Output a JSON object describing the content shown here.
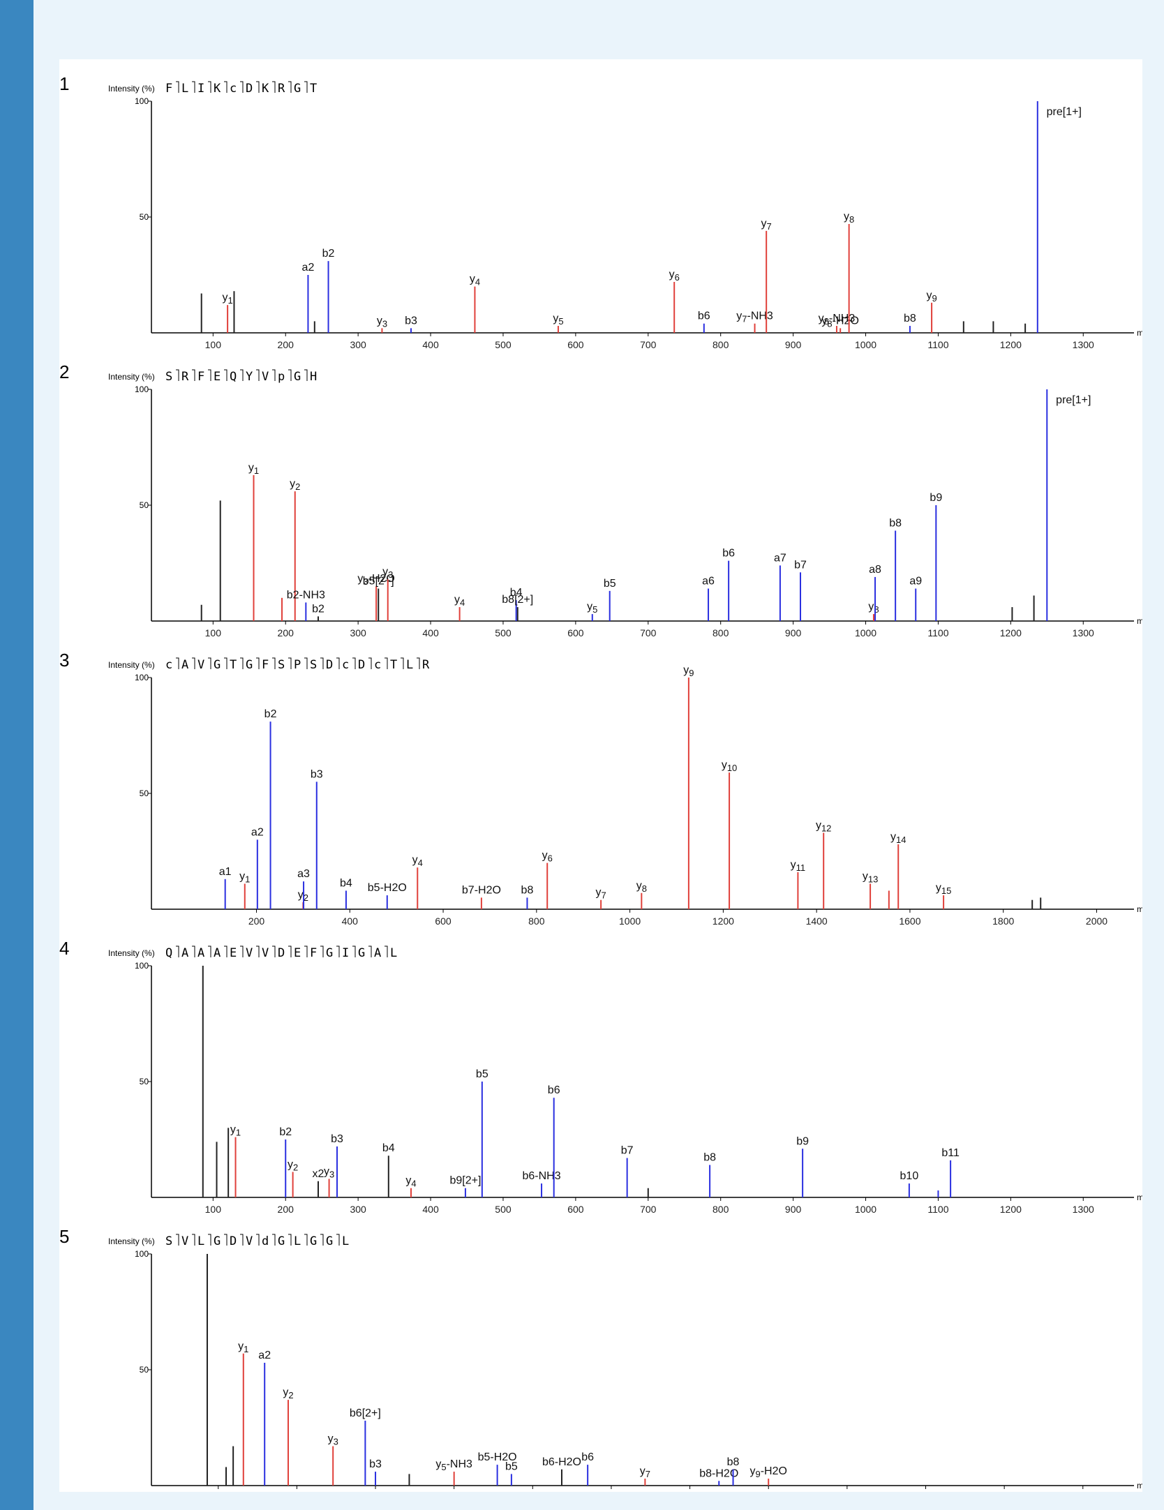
{
  "colors": {
    "sidebar": "#3a87c0",
    "background": "#eaf4fb",
    "panel": "#ffffff",
    "b_ion": "#2a2fe0",
    "y_ion": "#e0403a",
    "other": "#222222"
  },
  "chart_data": [
    {
      "type": "bar",
      "panel_number": "1",
      "ylabel": "Intensity (%)",
      "sequence": [
        "F",
        "L",
        "I",
        "K",
        "c",
        "D",
        "K",
        "R",
        "G",
        "T"
      ],
      "xlim": [
        15,
        1370
      ],
      "ylim": [
        0,
        100
      ],
      "xticks": [
        100,
        200,
        300,
        400,
        500,
        600,
        700,
        800,
        900,
        1000,
        1100,
        1200,
        1300
      ],
      "yticks": [
        50,
        100
      ],
      "peaks": [
        {
          "x": 84,
          "y": 17,
          "c": "k"
        },
        {
          "x": 120,
          "y": 12,
          "c": "r",
          "label": "y1"
        },
        {
          "x": 129,
          "y": 18,
          "c": "k"
        },
        {
          "x": 231,
          "y": 25,
          "c": "b",
          "label": "a2"
        },
        {
          "x": 259,
          "y": 31,
          "c": "b",
          "label": "b2"
        },
        {
          "x": 240,
          "y": 5,
          "c": "k"
        },
        {
          "x": 333,
          "y": 2,
          "c": "r",
          "label": "y3"
        },
        {
          "x": 373,
          "y": 2,
          "c": "b",
          "label": "b3"
        },
        {
          "x": 461,
          "y": 20,
          "c": "r",
          "label": "y4"
        },
        {
          "x": 576,
          "y": 3,
          "c": "r",
          "label": "y5"
        },
        {
          "x": 736,
          "y": 22,
          "c": "r",
          "label": "y6"
        },
        {
          "x": 777,
          "y": 4,
          "c": "b",
          "label": "b6"
        },
        {
          "x": 847,
          "y": 4,
          "c": "r",
          "label": "y7-NH3"
        },
        {
          "x": 863,
          "y": 44,
          "c": "r",
          "label": "y7"
        },
        {
          "x": 960,
          "y": 3,
          "c": "r",
          "label": "y8-NH3"
        },
        {
          "x": 965,
          "y": 2,
          "c": "r",
          "label": "y8-H2O"
        },
        {
          "x": 977,
          "y": 47,
          "c": "r",
          "label": "y8"
        },
        {
          "x": 1061,
          "y": 3,
          "c": "b",
          "label": "b8"
        },
        {
          "x": 1091,
          "y": 13,
          "c": "r",
          "label": "y9"
        },
        {
          "x": 1135,
          "y": 5,
          "c": "k"
        },
        {
          "x": 1176,
          "y": 5,
          "c": "k"
        },
        {
          "x": 1220,
          "y": 4,
          "c": "k"
        },
        {
          "x": 1237,
          "y": 100,
          "c": "b",
          "label": "pre[1+]"
        }
      ]
    },
    {
      "type": "bar",
      "panel_number": "2",
      "ylabel": "Intensity (%)",
      "sequence": [
        "S",
        "R",
        "F",
        "E",
        "Q",
        "Y",
        "V",
        "p",
        "G",
        "H"
      ],
      "xlim": [
        15,
        1370
      ],
      "ylim": [
        0,
        100
      ],
      "xticks": [
        100,
        200,
        300,
        400,
        500,
        600,
        700,
        800,
        900,
        1000,
        1100,
        1200,
        1300
      ],
      "yticks": [
        50,
        100
      ],
      "peaks": [
        {
          "x": 84,
          "y": 7,
          "c": "k"
        },
        {
          "x": 110,
          "y": 52,
          "c": "k"
        },
        {
          "x": 156,
          "y": 63,
          "c": "r",
          "label": "y1"
        },
        {
          "x": 213,
          "y": 56,
          "c": "r",
          "label": "y2"
        },
        {
          "x": 195,
          "y": 10,
          "c": "r"
        },
        {
          "x": 228,
          "y": 8,
          "c": "b",
          "label": "b2-NH3"
        },
        {
          "x": 245,
          "y": 2,
          "c": "k",
          "label": "b2"
        },
        {
          "x": 325,
          "y": 15,
          "c": "r",
          "label": "y3-H2O"
        },
        {
          "x": 328,
          "y": 14,
          "c": "k",
          "label": "b5[2+]"
        },
        {
          "x": 341,
          "y": 18,
          "c": "r",
          "label": "y3"
        },
        {
          "x": 440,
          "y": 6,
          "c": "r",
          "label": "y4"
        },
        {
          "x": 518,
          "y": 9,
          "c": "b",
          "label": "b4"
        },
        {
          "x": 520,
          "y": 6,
          "c": "k",
          "label": "b8[2+]"
        },
        {
          "x": 623,
          "y": 3,
          "c": "b",
          "label": "y5"
        },
        {
          "x": 647,
          "y": 13,
          "c": "b",
          "label": "b5"
        },
        {
          "x": 783,
          "y": 14,
          "c": "b",
          "label": "a6"
        },
        {
          "x": 811,
          "y": 26,
          "c": "b",
          "label": "b6"
        },
        {
          "x": 882,
          "y": 24,
          "c": "b",
          "label": "a7"
        },
        {
          "x": 910,
          "y": 21,
          "c": "b",
          "label": "b7"
        },
        {
          "x": 1011,
          "y": 3,
          "c": "r",
          "label": "y8"
        },
        {
          "x": 1013,
          "y": 19,
          "c": "b",
          "label": "a8"
        },
        {
          "x": 1041,
          "y": 39,
          "c": "b",
          "label": "b8"
        },
        {
          "x": 1069,
          "y": 14,
          "c": "b",
          "label": "a9"
        },
        {
          "x": 1097,
          "y": 50,
          "c": "b",
          "label": "b9"
        },
        {
          "x": 1202,
          "y": 6,
          "c": "k"
        },
        {
          "x": 1232,
          "y": 11,
          "c": "k"
        },
        {
          "x": 1250,
          "y": 100,
          "c": "b",
          "label": "pre[1+]"
        }
      ]
    },
    {
      "type": "bar",
      "panel_number": "3",
      "ylabel": "Intensity (%)",
      "sequence": [
        "c",
        "A",
        "V",
        "G",
        "T",
        "G",
        "F",
        "S",
        "P",
        "S",
        "D",
        "c",
        "D",
        "c",
        "T",
        "L",
        "R"
      ],
      "xlim": [
        -25,
        2080
      ],
      "ylim": [
        0,
        100
      ],
      "xticks": [
        200,
        400,
        600,
        800,
        1000,
        1200,
        1400,
        1600,
        1800,
        2000
      ],
      "yticks": [
        50,
        100
      ],
      "peaks": [
        {
          "x": 133,
          "y": 13,
          "c": "b",
          "label": "a1"
        },
        {
          "x": 175,
          "y": 11,
          "c": "r",
          "label": "y1"
        },
        {
          "x": 202,
          "y": 30,
          "c": "b",
          "label": "a2"
        },
        {
          "x": 230,
          "y": 81,
          "c": "b",
          "label": "b2"
        },
        {
          "x": 300,
          "y": 3,
          "c": "r",
          "label": "y2"
        },
        {
          "x": 301,
          "y": 12,
          "c": "b",
          "label": "a3"
        },
        {
          "x": 329,
          "y": 55,
          "c": "b",
          "label": "b3"
        },
        {
          "x": 392,
          "y": 8,
          "c": "b",
          "label": "b4"
        },
        {
          "x": 480,
          "y": 6,
          "c": "b",
          "label": "b5-H2O"
        },
        {
          "x": 545,
          "y": 18,
          "c": "r",
          "label": "y4"
        },
        {
          "x": 682,
          "y": 5,
          "c": "r",
          "label": "b7-H2O"
        },
        {
          "x": 780,
          "y": 5,
          "c": "b",
          "label": "b8"
        },
        {
          "x": 823,
          "y": 20,
          "c": "r",
          "label": "y6"
        },
        {
          "x": 938,
          "y": 4,
          "c": "r",
          "label": "y7"
        },
        {
          "x": 1025,
          "y": 7,
          "c": "r",
          "label": "y8"
        },
        {
          "x": 1126,
          "y": 100,
          "c": "r",
          "label": "y9"
        },
        {
          "x": 1213,
          "y": 59,
          "c": "r",
          "label": "y10"
        },
        {
          "x": 1360,
          "y": 16,
          "c": "r",
          "label": "y11"
        },
        {
          "x": 1415,
          "y": 33,
          "c": "r",
          "label": "y12"
        },
        {
          "x": 1515,
          "y": 11,
          "c": "r",
          "label": "y13"
        },
        {
          "x": 1555,
          "y": 8,
          "c": "r"
        },
        {
          "x": 1575,
          "y": 28,
          "c": "r",
          "label": "y14"
        },
        {
          "x": 1672,
          "y": 6,
          "c": "r",
          "label": "y15"
        },
        {
          "x": 1862,
          "y": 4,
          "c": "k"
        },
        {
          "x": 1880,
          "y": 5,
          "c": "k"
        }
      ]
    },
    {
      "type": "bar",
      "panel_number": "4",
      "ylabel": "Intensity (%)",
      "sequence": [
        "Q",
        "A",
        "A",
        "A",
        "E",
        "V",
        "V",
        "D",
        "E",
        "F",
        "G",
        "I",
        "G",
        "A",
        "L"
      ],
      "xlim": [
        15,
        1370
      ],
      "ylim": [
        0,
        100
      ],
      "xticks": [
        100,
        200,
        300,
        400,
        500,
        600,
        700,
        800,
        900,
        1000,
        1100,
        1200,
        1300
      ],
      "yticks": [
        50,
        100
      ],
      "peaks": [
        {
          "x": 86,
          "y": 100,
          "c": "k"
        },
        {
          "x": 105,
          "y": 24,
          "c": "k"
        },
        {
          "x": 121,
          "y": 30,
          "c": "k"
        },
        {
          "x": 131,
          "y": 26,
          "c": "r",
          "label": "y1"
        },
        {
          "x": 200,
          "y": 25,
          "c": "b",
          "label": "b2"
        },
        {
          "x": 210,
          "y": 11,
          "c": "r",
          "label": "y2"
        },
        {
          "x": 245,
          "y": 7,
          "c": "k",
          "label": "x2"
        },
        {
          "x": 260,
          "y": 8,
          "c": "r",
          "label": "y3"
        },
        {
          "x": 271,
          "y": 22,
          "c": "b",
          "label": "b3"
        },
        {
          "x": 342,
          "y": 18,
          "c": "k",
          "label": "b4"
        },
        {
          "x": 373,
          "y": 4,
          "c": "r",
          "label": "y4"
        },
        {
          "x": 448,
          "y": 4,
          "c": "b",
          "label": "b9[2+]"
        },
        {
          "x": 471,
          "y": 50,
          "c": "b",
          "label": "b5"
        },
        {
          "x": 553,
          "y": 6,
          "c": "b",
          "label": "b6-NH3"
        },
        {
          "x": 570,
          "y": 43,
          "c": "b",
          "label": "b6"
        },
        {
          "x": 671,
          "y": 17,
          "c": "b",
          "label": "b7"
        },
        {
          "x": 700,
          "y": 4,
          "c": "k"
        },
        {
          "x": 785,
          "y": 14,
          "c": "b",
          "label": "b8"
        },
        {
          "x": 913,
          "y": 21,
          "c": "b",
          "label": "b9"
        },
        {
          "x": 1060,
          "y": 6,
          "c": "b",
          "label": "b10"
        },
        {
          "x": 1100,
          "y": 3,
          "c": "b"
        },
        {
          "x": 1117,
          "y": 16,
          "c": "b",
          "label": "b11"
        }
      ]
    },
    {
      "type": "bar",
      "panel_number": "5",
      "ylabel": "Intensity (%)",
      "sequence": [
        "S",
        "V",
        "L",
        "G",
        "D",
        "V",
        "d",
        "G",
        "L",
        "G",
        "G",
        "L"
      ],
      "xlim": [
        15,
        1265
      ],
      "ylim": [
        0,
        100
      ],
      "xticks": [
        100,
        200,
        300,
        400,
        500,
        600,
        700,
        800,
        900,
        1000,
        1100,
        1200
      ],
      "yticks": [
        50,
        100
      ],
      "peaks": [
        {
          "x": 86,
          "y": 100,
          "c": "k"
        },
        {
          "x": 110,
          "y": 8,
          "c": "k"
        },
        {
          "x": 119,
          "y": 17,
          "c": "k"
        },
        {
          "x": 132,
          "y": 57,
          "c": "r",
          "label": "y1"
        },
        {
          "x": 159,
          "y": 53,
          "c": "b",
          "label": "a2"
        },
        {
          "x": 189,
          "y": 37,
          "c": "r",
          "label": "y2"
        },
        {
          "x": 246,
          "y": 17,
          "c": "r",
          "label": "y3"
        },
        {
          "x": 287,
          "y": 28,
          "c": "b",
          "label": "b6[2+]"
        },
        {
          "x": 300,
          "y": 6,
          "c": "b",
          "label": "b3"
        },
        {
          "x": 343,
          "y": 5,
          "c": "k"
        },
        {
          "x": 400,
          "y": 6,
          "c": "r",
          "label": "y5-NH3"
        },
        {
          "x": 455,
          "y": 9,
          "c": "b",
          "label": "b5-H2O"
        },
        {
          "x": 473,
          "y": 5,
          "c": "b",
          "label": "b5"
        },
        {
          "x": 537,
          "y": 7,
          "c": "k",
          "label": "b6-H2O"
        },
        {
          "x": 570,
          "y": 9,
          "c": "b",
          "label": "b6"
        },
        {
          "x": 643,
          "y": 3,
          "c": "r",
          "label": "y7"
        },
        {
          "x": 737,
          "y": 2,
          "c": "b",
          "label": "b8-H2O"
        },
        {
          "x": 755,
          "y": 7,
          "c": "b",
          "label": "b8"
        },
        {
          "x": 800,
          "y": 3,
          "c": "r",
          "label": "y9-H2O"
        }
      ]
    }
  ]
}
